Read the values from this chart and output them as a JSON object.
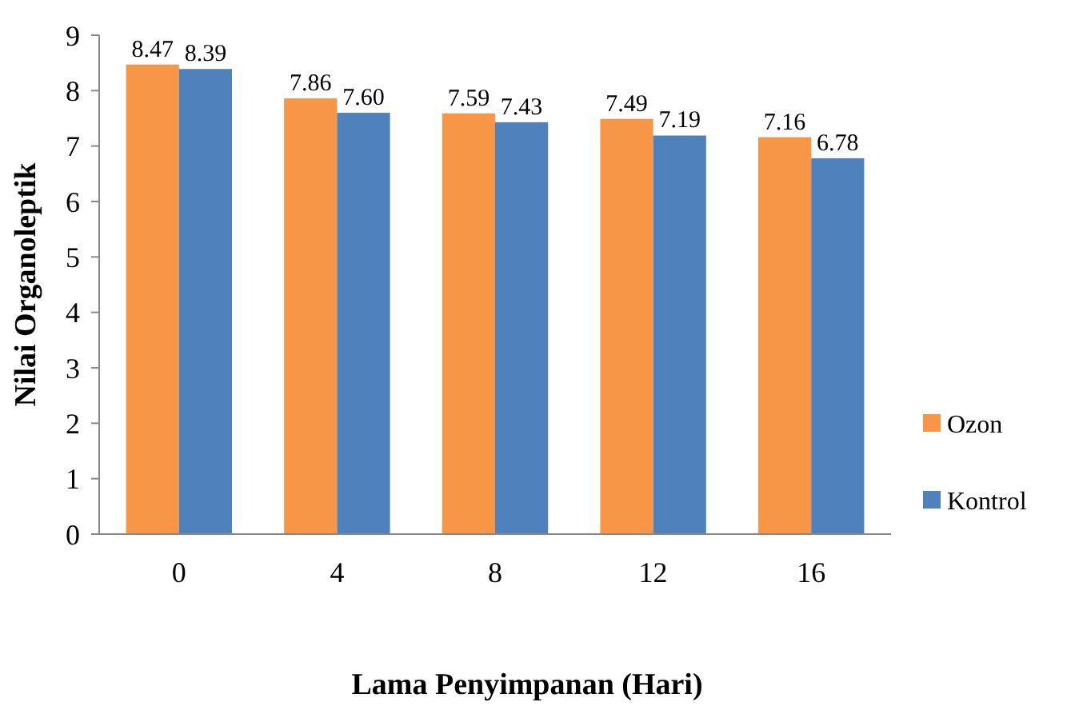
{
  "chart_data": {
    "type": "bar",
    "xlabel": "Lama Penyimpanan (Hari)",
    "ylabel": "Nilai Organoleptik",
    "categories": [
      "0",
      "4",
      "8",
      "12",
      "16"
    ],
    "series": [
      {
        "name": "Ozon",
        "color": "#f79646",
        "values": [
          8.47,
          7.86,
          7.59,
          7.49,
          7.16
        ],
        "value_labels": [
          "8.47",
          "7.86",
          "7.59",
          "7.49",
          "7.16"
        ]
      },
      {
        "name": "Kontrol",
        "color": "#4f81bd",
        "values": [
          8.39,
          7.6,
          7.43,
          7.19,
          6.78
        ],
        "value_labels": [
          "8.39",
          "7.60",
          "7.43",
          "7.19",
          "6.78"
        ]
      }
    ],
    "ylim": [
      0,
      9
    ],
    "yticks": [
      0,
      1,
      2,
      3,
      4,
      5,
      6,
      7,
      8,
      9
    ],
    "legend": "right",
    "grid": false
  }
}
